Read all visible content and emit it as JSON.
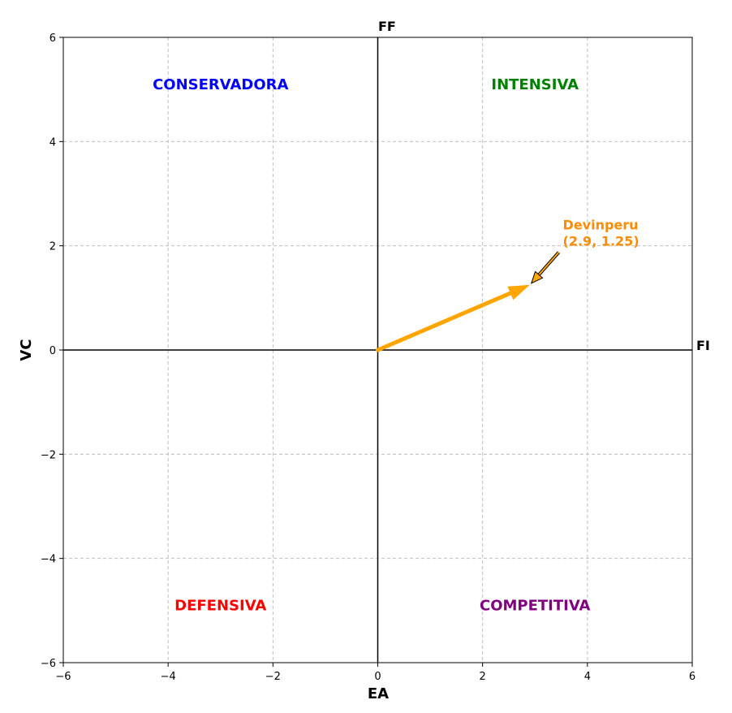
{
  "chart_data": {
    "type": "scatter",
    "xlabel": "EA",
    "ylabel": "VC",
    "xlim": [
      -6,
      6
    ],
    "ylim": [
      -6,
      6
    ],
    "xticks": [
      -6,
      -4,
      -2,
      0,
      2,
      4,
      6
    ],
    "yticks": [
      -6,
      -4,
      -2,
      0,
      2,
      4,
      6
    ],
    "grid": true,
    "axis_end_labels": {
      "x_positive": "FI",
      "y_positive": "FF"
    },
    "quadrants": [
      {
        "label": "CONSERVADORA",
        "x": -3.0,
        "y": 5.1,
        "color": "#0000ff"
      },
      {
        "label": "INTENSIVA",
        "x": 3.0,
        "y": 5.1,
        "color": "#008000"
      },
      {
        "label": "DEFENSIVA",
        "x": -3.0,
        "y": -4.9,
        "color": "#ff0000"
      },
      {
        "label": "COMPETITIVA",
        "x": 3.0,
        "y": -4.9,
        "color": "#800080"
      }
    ],
    "vector": {
      "from": [
        0,
        0
      ],
      "to": [
        2.9,
        1.25
      ],
      "color": "#ffa500"
    },
    "annotation": {
      "lines": [
        "Devinperu",
        "(2.9, 1.25)"
      ],
      "text_anchor_data": [
        3.5,
        2.0
      ],
      "arrow_to": [
        2.9,
        1.25
      ],
      "color": "#ff8c00"
    }
  }
}
